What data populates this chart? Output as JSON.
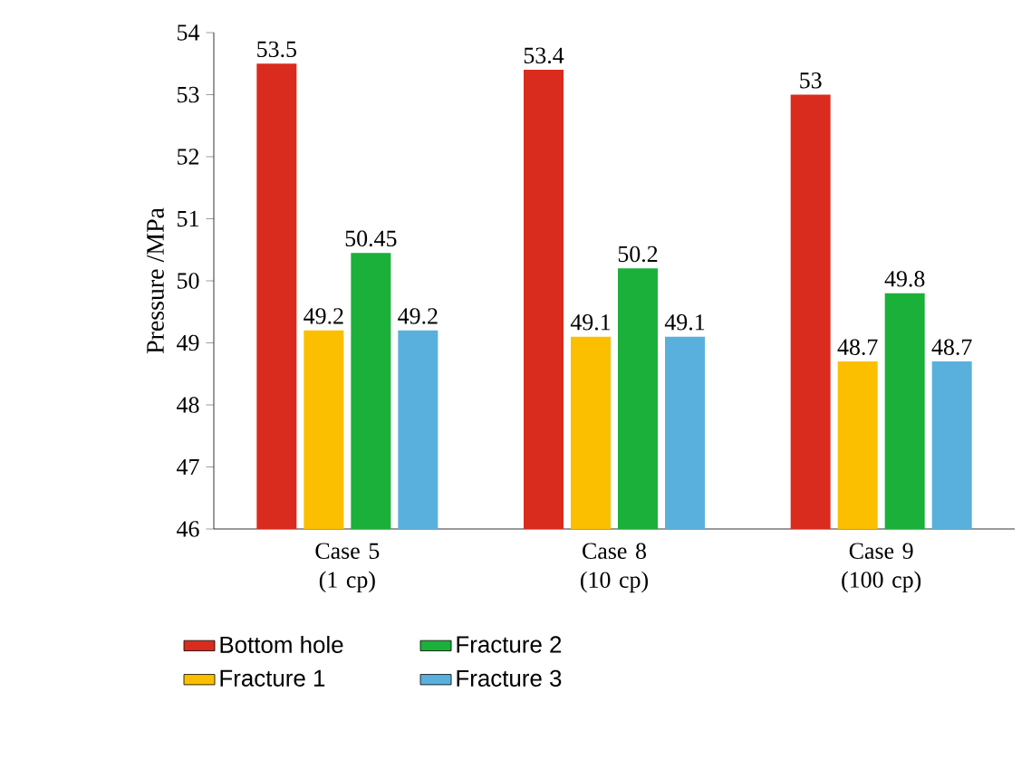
{
  "chart_data": {
    "type": "bar",
    "ylabel": "Pressure /MPa",
    "categories": [
      "Case 5 (1 cp)",
      "Case 8 (10 cp)",
      "Case 9 (100 cp)"
    ],
    "series": [
      {
        "name": "Bottom hole",
        "color": "#d92b1e",
        "values": [
          53.5,
          53.4,
          53
        ]
      },
      {
        "name": "Fracture 1",
        "color": "#fbbf00",
        "values": [
          49.2,
          49.1,
          48.7
        ]
      },
      {
        "name": "Fracture 2",
        "color": "#1ab03a",
        "values": [
          50.45,
          50.2,
          49.8
        ]
      },
      {
        "name": "Fracture 3",
        "color": "#5ab0dc",
        "values": [
          49.2,
          49.1,
          48.7
        ]
      }
    ],
    "ylim": [
      46,
      54
    ],
    "yticks": [
      46,
      47,
      48,
      49,
      50,
      51,
      52,
      53,
      54
    ],
    "data_labels": true,
    "legend": "bottom",
    "grid": false
  }
}
